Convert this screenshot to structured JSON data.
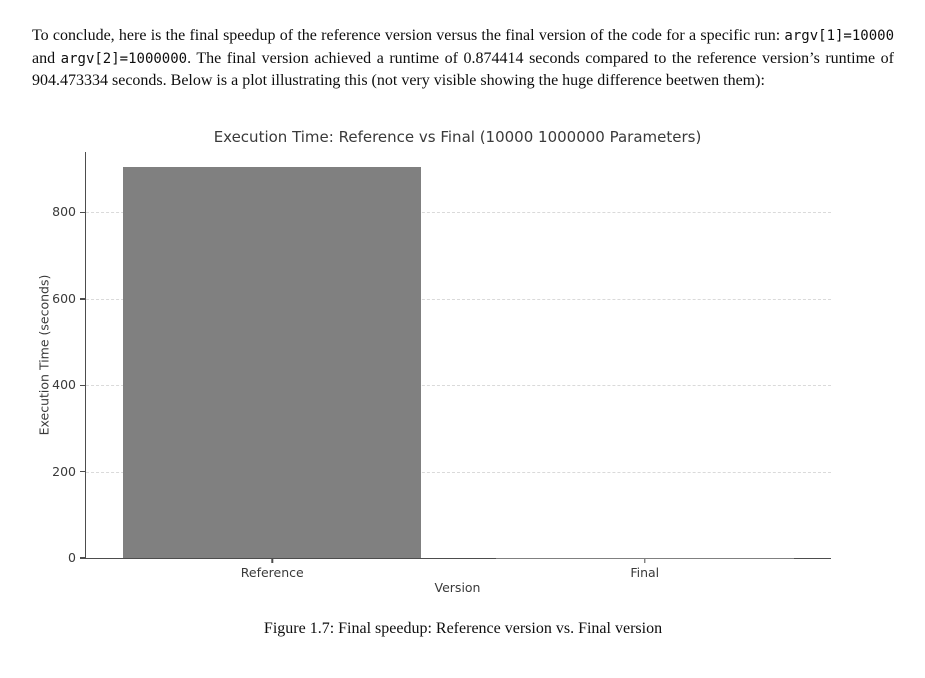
{
  "document": {
    "paragraph": {
      "part1": "To conclude, here is the final speedup of the reference version versus the final version of the code for a specific run: ",
      "code1": "argv[1]=10000",
      "part2": " and ",
      "code2": "argv[2]=1000000",
      "part3": ". The final version achieved a runtime of 0.874414 seconds compared to the reference version’s runtime of 904.473334 seconds. Below is a plot illustrating this (not very visible showing the huge difference beetwen them):"
    },
    "caption": "Figure 1.7: Final speedup: Reference version vs. Final version"
  },
  "chart_data": {
    "type": "bar",
    "title": "Execution Time: Reference vs Final (10000 1000000 Parameters)",
    "categories": [
      "Reference",
      "Final"
    ],
    "values": [
      904.473334,
      0.874414
    ],
    "xlabel": "Version",
    "ylabel": "Execution Time (seconds)",
    "yticks": [
      0,
      200,
      400,
      600,
      800
    ],
    "ylim": [
      0,
      940
    ],
    "bar_color": "#808080",
    "bar_width_fraction": 0.8,
    "grid": true,
    "grid_style": "dashed",
    "legend": false
  }
}
